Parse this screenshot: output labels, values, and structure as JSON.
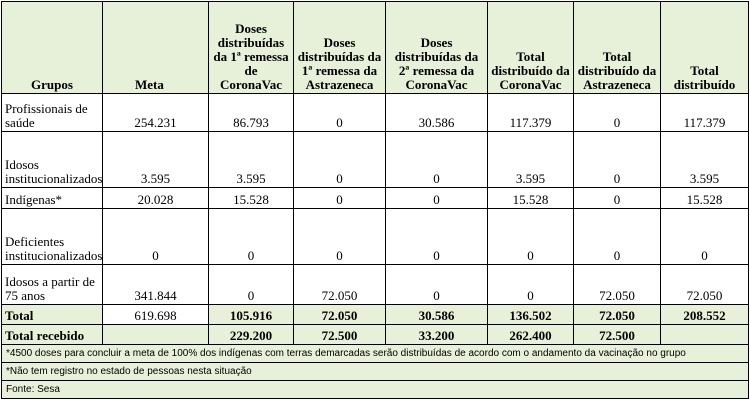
{
  "headers": {
    "grupos": "Grupos",
    "meta": "Meta",
    "doses_1_corona": "Doses distribuídas da 1ª remessa de CoronaVac",
    "doses_1_astra": "Doses distribuídas da 1ª remessa da Astrazeneca",
    "doses_2_corona": "Doses distribuídas da 2ª remessa da CoronaVac",
    "total_corona": "Total distribuído da CoronaVac",
    "total_astra": "Total distribuído da Astrazeneca",
    "total": "Total distribuído"
  },
  "rows": [
    {
      "grupo": "Profissionais de saúde",
      "meta": "254.231",
      "d1c": "86.793",
      "d1a": "0",
      "d2c": "30.586",
      "tc": "117.379",
      "ta": "0",
      "t": "117.379"
    },
    {
      "grupo": "Idosos institucionalizados",
      "meta": "3.595",
      "d1c": "3.595",
      "d1a": "0",
      "d2c": "0",
      "tc": "3.595",
      "ta": "0",
      "t": "3.595"
    },
    {
      "grupo": "Indígenas*",
      "meta": "20.028",
      "d1c": "15.528",
      "d1a": "0",
      "d2c": "0",
      "tc": "15.528",
      "ta": "0",
      "t": "15.528"
    },
    {
      "grupo": "Deficientes institucionalizados*",
      "meta": "0",
      "d1c": "0",
      "d1a": "0",
      "d2c": "0",
      "tc": "0",
      "ta": "0",
      "t": "0"
    },
    {
      "grupo": "Idosos a partir de 75 anos",
      "meta": "341.844",
      "d1c": "0",
      "d1a": "72.050",
      "d2c": "0",
      "tc": "0",
      "ta": "72.050",
      "t": "72.050"
    }
  ],
  "total": {
    "grupo": "Total",
    "meta": "619.698",
    "d1c": "105.916",
    "d1a": "72.050",
    "d2c": "30.586",
    "tc": "136.502",
    "ta": "72.050",
    "t": "208.552"
  },
  "total_recebido": {
    "grupo": "Total recebido",
    "d1c": "229.200",
    "d1a": "72.500",
    "d2c": "33.200",
    "tc": "262.400",
    "ta": "72.500"
  },
  "footnotes": [
    "*4500 doses para concluir a meta de 100% dos indígenas com terras demarcadas serão distribuídas de acordo com o andamento da vacinação no grupo",
    "*Não tem registro no estado de pessoas nesta situação",
    "Fonte: Sesa"
  ]
}
